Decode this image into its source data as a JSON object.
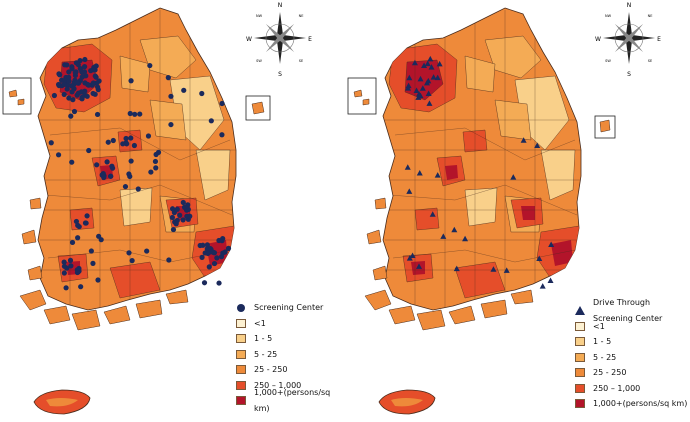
{
  "maps": [
    {
      "marker_shape": "circle",
      "legend": {
        "marker_label": "Screening Center",
        "classes": [
          {
            "label": "<1",
            "color": "#fdf1d2"
          },
          {
            "label": "1 - 5",
            "color": "#f9d08a"
          },
          {
            "label": "5 - 25",
            "color": "#f4ab55"
          },
          {
            "label": "25 - 250",
            "color": "#ee8a3a"
          },
          {
            "label": "250 – 1,000",
            "color": "#e54e2a"
          },
          {
            "label": "1,000+(persons/sq km)",
            "color": "#b3142a"
          }
        ]
      }
    },
    {
      "marker_shape": "triangle",
      "legend": {
        "marker_label": "Drive Through Screening Center",
        "classes": [
          {
            "label": "<1",
            "color": "#fdf1d2"
          },
          {
            "label": "1 - 5",
            "color": "#f9d08a"
          },
          {
            "label": "5 - 25",
            "color": "#f4ab55"
          },
          {
            "label": "25 - 250",
            "color": "#ee8a3a"
          },
          {
            "label": "250 – 1,000",
            "color": "#e54e2a"
          },
          {
            "label": "1,000+(persons/sq km)",
            "color": "#b3142a"
          }
        ]
      }
    }
  ],
  "compass": {
    "n": "N",
    "s": "S",
    "e": "E",
    "w": "W",
    "ne": "NE",
    "nw": "NW",
    "se": "SE",
    "sw": "SW"
  },
  "colors": {
    "outline": "#4a2c1c",
    "marker": "#1b2a5c",
    "background": "#ffffff"
  }
}
